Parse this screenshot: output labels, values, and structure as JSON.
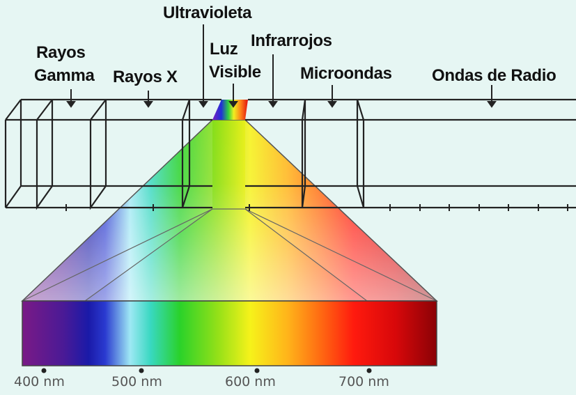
{
  "labels": {
    "uv": "Ultravioleta",
    "gamma_1": "Rayos",
    "gamma_2": "Gamma",
    "xray": "Rayos X",
    "visible_1": "Luz",
    "visible_2": "Visible",
    "ir": "Infrarrojos",
    "micro": "Microondas",
    "radio": "Ondas de Radio"
  },
  "wavelength_ticks": [
    "400 nm",
    "500 nm",
    "600 nm",
    "700 nm"
  ],
  "colors": {
    "background": "#e6f6f3",
    "outline": "#222222",
    "text": "#111111",
    "tick_text": "#555555"
  }
}
